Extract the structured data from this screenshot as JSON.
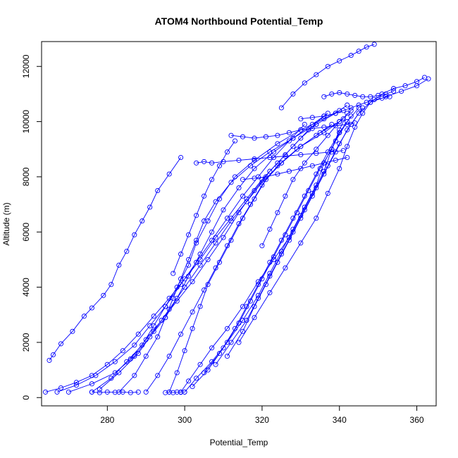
{
  "chart_data": {
    "type": "scatter",
    "title": "ATOM4 Northbound Potential_Temp",
    "xlabel": "Potential_Temp",
    "ylabel": "Altitude (m)",
    "xlim": [
      263,
      365
    ],
    "ylim": [
      -300,
      12900
    ],
    "xticks": [
      280,
      300,
      320,
      340,
      360
    ],
    "yticks": [
      0,
      2000,
      4000,
      6000,
      8000,
      10000,
      12000
    ],
    "color": "#0000ff",
    "marker": "open-circle",
    "connected": true,
    "grid": false,
    "series": [
      {
        "x": [
          265,
          266,
          268,
          271,
          274,
          276,
          279,
          281,
          283,
          285,
          287,
          289,
          291,
          293,
          296,
          299
        ],
        "y": [
          1350,
          1550,
          1950,
          2400,
          2950,
          3250,
          3700,
          4100,
          4800,
          5300,
          5900,
          6400,
          6900,
          7500,
          8100,
          8700
        ]
      },
      {
        "x": [
          264,
          268,
          272,
          276,
          280,
          284,
          288,
          292,
          296,
          300,
          304,
          308,
          312,
          316,
          320,
          324,
          328,
          332,
          336
        ],
        "y": [
          200,
          350,
          550,
          800,
          1200,
          1700,
          2300,
          2950,
          3600,
          4300,
          5000,
          5800,
          6500,
          7200,
          7900,
          8500,
          9100,
          9700,
          10200
        ]
      },
      {
        "x": [
          267,
          272,
          277,
          282,
          287,
          291,
          295,
          299,
          303,
          307,
          311,
          315,
          319,
          323,
          327,
          331
        ],
        "y": [
          200,
          450,
          800,
          1300,
          1900,
          2600,
          3300,
          4100,
          4900,
          5700,
          6500,
          7300,
          8000,
          8700,
          9300,
          9900
        ]
      },
      {
        "x": [
          270,
          276,
          282,
          287,
          291,
          295,
          298,
          301,
          304,
          307,
          310,
          314,
          318,
          323,
          328,
          333,
          337
        ],
        "y": [
          200,
          500,
          900,
          1500,
          2200,
          2900,
          3600,
          4400,
          5200,
          6000,
          6800,
          7600,
          8300,
          8900,
          9400,
          9900,
          10300
        ]
      },
      {
        "x": [
          276,
          281,
          285,
          289,
          292,
          295,
          298,
          301,
          303,
          306,
          309,
          313,
          318,
          324,
          330,
          336,
          340
        ],
        "y": [
          200,
          700,
          1300,
          1900,
          2600,
          3300,
          4000,
          4800,
          5600,
          6400,
          7200,
          8000,
          8600,
          9200,
          9700,
          10100,
          10400
        ]
      },
      {
        "x": [
          283,
          287,
          290,
          293,
          295,
          297,
          299,
          301,
          303,
          305,
          308,
          312,
          317,
          322,
          328,
          334,
          339,
          342
        ],
        "y": [
          200,
          800,
          1500,
          2200,
          2900,
          3600,
          4300,
          5000,
          5700,
          6400,
          7100,
          7800,
          8400,
          8900,
          9400,
          9900,
          10300,
          10600
        ]
      },
      {
        "x": [
          290,
          293,
          296,
          299,
          302,
          305,
          308,
          311,
          314,
          317,
          320,
          324,
          329,
          334,
          338
        ],
        "y": [
          200,
          800,
          1500,
          2300,
          3100,
          3900,
          4700,
          5500,
          6300,
          7000,
          7700,
          8400,
          9000,
          9500,
          9900
        ]
      },
      {
        "x": [
          296,
          298,
          300,
          302,
          304,
          306,
          309,
          312,
          315,
          318,
          321,
          325,
          330,
          336,
          341
        ],
        "y": [
          200,
          900,
          1700,
          2500,
          3300,
          4100,
          4900,
          5700,
          6500,
          7200,
          7900,
          8500,
          9100,
          9600,
          10100
        ]
      },
      {
        "x": [
          299,
          301,
          304,
          307,
          311,
          315,
          319,
          323,
          327,
          330,
          333,
          336,
          338,
          340
        ],
        "y": [
          200,
          600,
          1200,
          1800,
          2500,
          3300,
          4200,
          5000,
          5800,
          6600,
          7400,
          8200,
          9000,
          9600
        ]
      },
      {
        "x": [
          300,
          303,
          307,
          311,
          315,
          319,
          322,
          325,
          328,
          331,
          334,
          336,
          339,
          342,
          345
        ],
        "y": [
          200,
          700,
          1300,
          2000,
          2800,
          3700,
          4500,
          5300,
          6100,
          6900,
          7700,
          8500,
          9300,
          10000,
          10500
        ]
      },
      {
        "x": [
          302,
          306,
          310,
          314,
          317,
          320,
          323,
          326,
          329,
          332,
          335,
          338,
          340,
          342
        ],
        "y": [
          400,
          1000,
          1800,
          2700,
          3500,
          4300,
          5100,
          5900,
          6700,
          7500,
          8300,
          9000,
          9700,
          10300
        ]
      },
      {
        "x": [
          305,
          309,
          313,
          316,
          319,
          322,
          325,
          328,
          331,
          334,
          337,
          340,
          343
        ],
        "y": [
          900,
          1600,
          2500,
          3300,
          4100,
          4900,
          5700,
          6500,
          7300,
          8100,
          8900,
          9600,
          10200
        ]
      },
      {
        "x": [
          308,
          312,
          316,
          319,
          322,
          325,
          328,
          331,
          334,
          337,
          340,
          343,
          346
        ],
        "y": [
          1200,
          2000,
          2800,
          3600,
          4400,
          5200,
          6000,
          6800,
          7600,
          8400,
          9200,
          9900,
          10500
        ]
      },
      {
        "x": [
          311,
          315,
          318,
          321,
          324,
          327,
          330,
          333,
          336,
          339,
          342,
          345,
          348,
          352,
          356,
          360,
          363
        ],
        "y": [
          1500,
          2400,
          3300,
          4100,
          4900,
          5700,
          6500,
          7300,
          8100,
          8900,
          9700,
          10300,
          10700,
          10900,
          11100,
          11300,
          11550
        ]
      },
      {
        "x": [
          314,
          318,
          322,
          326,
          330,
          334,
          337,
          340,
          342,
          344,
          346,
          348,
          351,
          354,
          357,
          360,
          362
        ],
        "y": [
          2000,
          2900,
          3800,
          4700,
          5600,
          6500,
          7400,
          8300,
          9100,
          9800,
          10300,
          10700,
          11000,
          11200,
          11300,
          11450,
          11600
        ]
      },
      {
        "x": [
          286,
          290,
          294,
          298,
          302,
          306,
          310,
          314,
          318,
          322,
          326,
          330,
          334
        ],
        "y": [
          1400,
          2100,
          2800,
          3500,
          4200,
          5000,
          5800,
          6700,
          7500,
          8200,
          8800,
          9400,
          9900
        ]
      },
      {
        "x": [
          278,
          283,
          288,
          292,
          296,
          300,
          304,
          308,
          312,
          316,
          320,
          325,
          330,
          335,
          340
        ],
        "y": [
          300,
          900,
          1600,
          2400,
          3200,
          4000,
          4800,
          5600,
          6400,
          7100,
          7800,
          8500,
          9100,
          9600,
          10000
        ]
      },
      {
        "x": [
          303,
          305,
          307,
          310,
          314,
          318,
          322,
          326,
          330,
          334,
          338,
          341
        ],
        "y": [
          8500,
          8550,
          8500,
          8550,
          8600,
          8650,
          8700,
          8750,
          8800,
          8850,
          8900,
          8950
        ]
      },
      {
        "x": [
          312,
          315,
          318,
          321,
          324,
          327,
          330,
          333,
          336,
          339,
          342,
          344
        ],
        "y": [
          9500,
          9450,
          9400,
          9450,
          9500,
          9600,
          9700,
          9750,
          9800,
          9850,
          9900,
          9950
        ]
      },
      {
        "x": [
          325,
          328,
          331,
          334,
          337,
          340,
          343,
          345,
          347,
          349
        ],
        "y": [
          10500,
          11000,
          11400,
          11700,
          12000,
          12200,
          12400,
          12550,
          12700,
          12800
        ]
      },
      {
        "x": [
          315,
          318,
          321,
          324,
          327,
          330,
          333,
          336,
          339,
          342
        ],
        "y": [
          7900,
          7950,
          8000,
          8100,
          8200,
          8300,
          8400,
          8500,
          8600,
          8700
        ]
      },
      {
        "x": [
          336,
          338,
          340,
          342,
          344,
          346,
          348,
          350,
          352,
          354
        ],
        "y": [
          10900,
          11000,
          11050,
          11000,
          10950,
          10900,
          10900,
          10950,
          11000,
          11100
        ]
      },
      {
        "x": [
          330,
          333,
          336,
          339,
          341,
          343,
          345,
          347,
          349,
          351,
          353
        ],
        "y": [
          10100,
          10150,
          10200,
          10300,
          10400,
          10500,
          10600,
          10700,
          10800,
          10850,
          10900
        ]
      },
      {
        "x": [
          297,
          299,
          301,
          303,
          305,
          307,
          309,
          311,
          313
        ],
        "y": [
          4500,
          5200,
          5900,
          6600,
          7300,
          7900,
          8400,
          8900,
          9300
        ]
      },
      {
        "x": [
          320,
          322,
          324,
          326,
          328,
          331,
          334,
          337,
          340,
          343
        ],
        "y": [
          5500,
          6100,
          6700,
          7300,
          7900,
          8500,
          9000,
          9500,
          10000,
          10400
        ]
      },
      {
        "x": [
          295,
          296,
          297,
          298,
          299,
          300
        ],
        "y": [
          180,
          200,
          180,
          200,
          190,
          200
        ]
      },
      {
        "x": [
          276,
          278,
          280,
          282,
          284,
          286,
          288
        ],
        "y": [
          200,
          180,
          200,
          190,
          200,
          180,
          200
        ]
      }
    ]
  }
}
